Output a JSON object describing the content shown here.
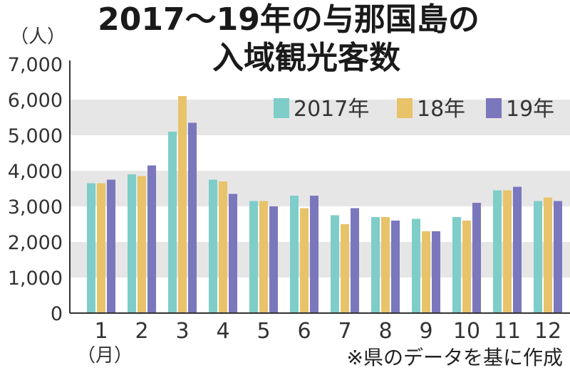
{
  "chart_data": {
    "type": "bar",
    "title_line1": "2017～19年の与那国島の",
    "title_line2": "入域観光客数",
    "ylabel": "（人）",
    "xlabel": "（月）",
    "source_note": "※県のデータを基に作成",
    "ylim": [
      0,
      7000
    ],
    "yticks": [
      "0",
      "1,000",
      "2,000",
      "3,000",
      "4,000",
      "5,000",
      "6,000",
      "7,000"
    ],
    "categories": [
      "1",
      "2",
      "3",
      "4",
      "5",
      "6",
      "7",
      "8",
      "9",
      "10",
      "11",
      "12"
    ],
    "series": [
      {
        "name": "2017年",
        "color": "#7ecdc8",
        "values": [
          3650,
          3900,
          5100,
          3750,
          3150,
          3300,
          2750,
          2700,
          2650,
          2700,
          3450,
          3150
        ]
      },
      {
        "name": "18年",
        "color": "#e8c36a",
        "values": [
          3650,
          3850,
          6100,
          3700,
          3150,
          2950,
          2500,
          2700,
          2300,
          2600,
          3450,
          3250
        ]
      },
      {
        "name": "19年",
        "color": "#7b77bd",
        "values": [
          3750,
          4150,
          5350,
          3350,
          3000,
          3300,
          2950,
          2600,
          2300,
          3100,
          3550,
          3150
        ]
      }
    ],
    "grid": "alternating bands",
    "legend_position": "top-right"
  }
}
